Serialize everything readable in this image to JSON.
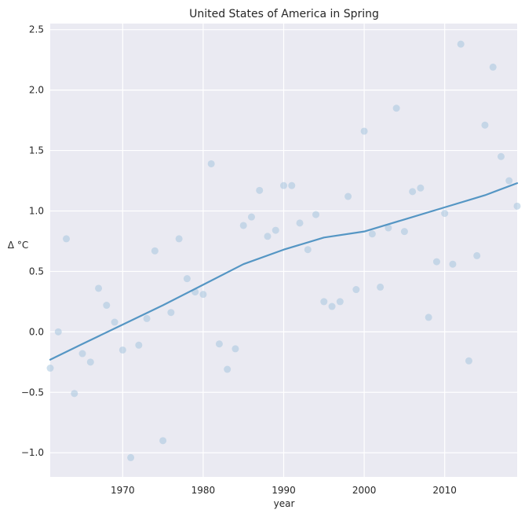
{
  "chart_data": {
    "type": "scatter",
    "title": "United States of America in Spring",
    "xlabel": "year",
    "ylabel": "Δ °C",
    "xlim": [
      1961,
      2019
    ],
    "ylim": [
      -1.2,
      2.55
    ],
    "xticks": [
      1970,
      1980,
      1990,
      2000,
      2010
    ],
    "yticks": [
      -1.0,
      -0.5,
      0.0,
      0.5,
      1.0,
      1.5,
      2.0,
      2.5
    ],
    "ytick_labels": [
      "−1.0",
      "−0.5",
      "0.0",
      "0.5",
      "1.0",
      "1.5",
      "2.0",
      "2.5"
    ],
    "grid": true,
    "background": "#eaeaf2",
    "point_color": "#a6c5df",
    "line_color": "#5596c4",
    "series": [
      {
        "kind": "scatter",
        "points": [
          [
            1961,
            -0.3
          ],
          [
            1962,
            0.0
          ],
          [
            1963,
            0.77
          ],
          [
            1964,
            -0.51
          ],
          [
            1965,
            -0.18
          ],
          [
            1966,
            -0.25
          ],
          [
            1967,
            0.36
          ],
          [
            1968,
            0.22
          ],
          [
            1969,
            0.08
          ],
          [
            1970,
            -0.15
          ],
          [
            1971,
            -1.04
          ],
          [
            1972,
            -0.11
          ],
          [
            1973,
            0.11
          ],
          [
            1974,
            0.67
          ],
          [
            1975,
            -0.9
          ],
          [
            1976,
            0.16
          ],
          [
            1977,
            0.77
          ],
          [
            1978,
            0.44
          ],
          [
            1979,
            0.33
          ],
          [
            1980,
            0.31
          ],
          [
            1981,
            1.39
          ],
          [
            1982,
            -0.1
          ],
          [
            1983,
            -0.31
          ],
          [
            1984,
            -0.14
          ],
          [
            1985,
            0.88
          ],
          [
            1986,
            0.95
          ],
          [
            1987,
            1.17
          ],
          [
            1988,
            0.79
          ],
          [
            1989,
            0.84
          ],
          [
            1990,
            1.21
          ],
          [
            1991,
            1.21
          ],
          [
            1992,
            0.9
          ],
          [
            1993,
            0.68
          ],
          [
            1994,
            0.97
          ],
          [
            1995,
            0.25
          ],
          [
            1996,
            0.21
          ],
          [
            1997,
            0.25
          ],
          [
            1998,
            1.12
          ],
          [
            1999,
            0.35
          ],
          [
            2000,
            1.66
          ],
          [
            2001,
            0.81
          ],
          [
            2002,
            0.37
          ],
          [
            2003,
            0.86
          ],
          [
            2004,
            1.85
          ],
          [
            2005,
            0.83
          ],
          [
            2006,
            1.16
          ],
          [
            2007,
            1.19
          ],
          [
            2008,
            0.12
          ],
          [
            2009,
            0.58
          ],
          [
            2010,
            0.98
          ],
          [
            2011,
            0.56
          ],
          [
            2012,
            2.38
          ],
          [
            2013,
            -0.24
          ],
          [
            2014,
            0.63
          ],
          [
            2015,
            1.71
          ],
          [
            2016,
            2.19
          ],
          [
            2017,
            1.45
          ],
          [
            2018,
            1.25
          ],
          [
            2019,
            1.04
          ]
        ]
      },
      {
        "kind": "line",
        "points": [
          [
            1961,
            -0.23
          ],
          [
            1965,
            -0.1
          ],
          [
            1970,
            0.06
          ],
          [
            1975,
            0.22
          ],
          [
            1980,
            0.39
          ],
          [
            1985,
            0.56
          ],
          [
            1990,
            0.68
          ],
          [
            1995,
            0.78
          ],
          [
            2000,
            0.83
          ],
          [
            2005,
            0.93
          ],
          [
            2010,
            1.03
          ],
          [
            2015,
            1.13
          ],
          [
            2019,
            1.23
          ]
        ]
      }
    ]
  }
}
